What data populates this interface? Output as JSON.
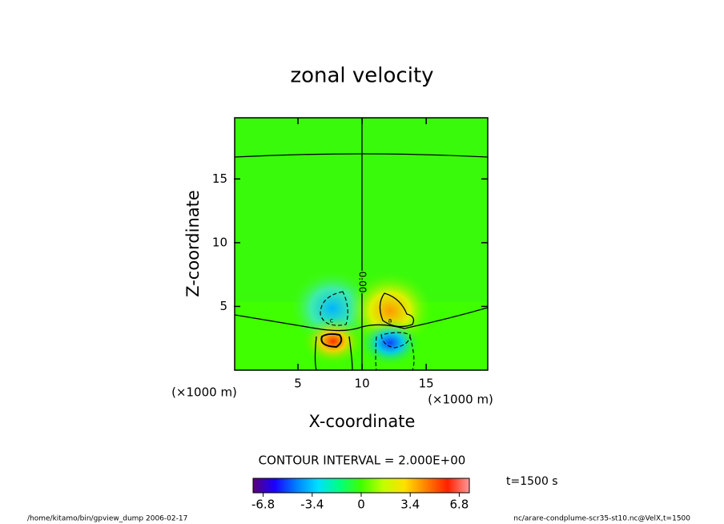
{
  "chart_data": {
    "type": "contour",
    "title": "zonal velocity",
    "xlabel": "X-coordinate",
    "ylabel": "Z-coordinate",
    "xunit": "(×1000 m)",
    "yunit": "(×1000 m)",
    "xlim": [
      0,
      19.8
    ],
    "ylim": [
      0,
      19.8
    ],
    "xticks": [
      5,
      10,
      15
    ],
    "yticks": [
      5,
      10,
      15
    ],
    "contour_label": "0.00",
    "contour_interval": "CONTOUR INTERVAL = 2.000E+00",
    "colorbar": {
      "lim": [
        -7.5,
        7.5
      ],
      "ticks": [
        -6.8,
        -3.4,
        0,
        3.4,
        6.8
      ],
      "colors": [
        "#5a0078",
        "#1a00ff",
        "#0080ff",
        "#00e0ff",
        "#00ff80",
        "#40ff00",
        "#c0ff00",
        "#ffe000",
        "#ff8000",
        "#ff2000",
        "#ff9999"
      ]
    },
    "time_label": "t=1500 s",
    "footer_left": "/home/kitamo/bin/gpview_dump  2006-02-17",
    "footer_right": "nc/arare-condplume-scr35-st10.nc@VelX,t=1500"
  }
}
